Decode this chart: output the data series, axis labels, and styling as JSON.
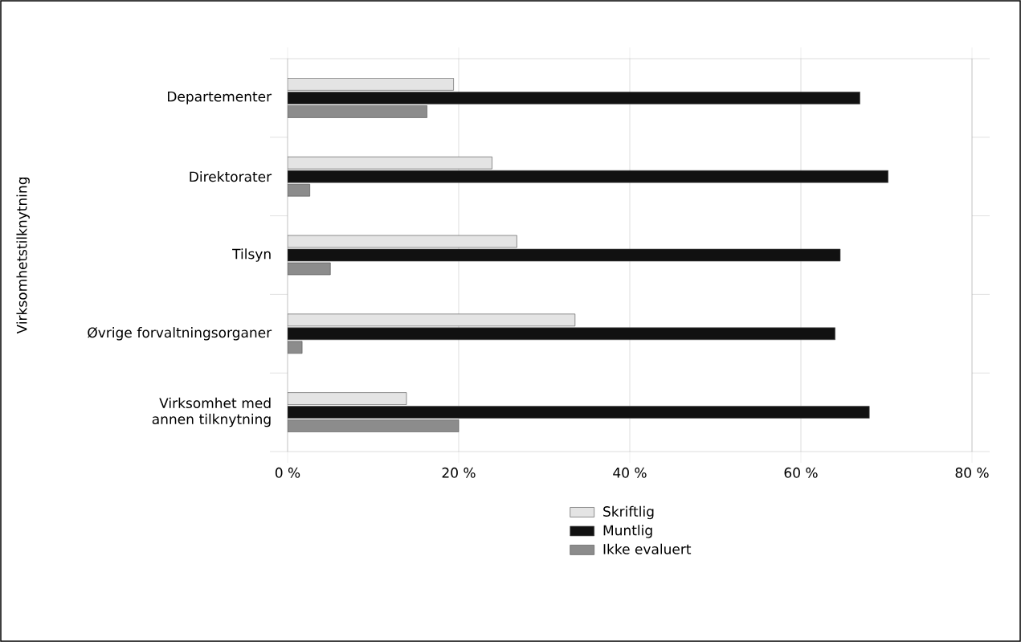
{
  "chart_data": {
    "type": "bar",
    "orientation": "horizontal",
    "ylabel": "Virksomhetstilknytning",
    "categories": [
      "Departementer",
      "Direktorater",
      "Tilsyn",
      "Øvrige forvaltningsorganer",
      "Virksomhet med annen tilknytning"
    ],
    "series": [
      {
        "name": "Skriftlig",
        "color": "#e4e4e4",
        "values": [
          19.4,
          23.9,
          26.8,
          33.6,
          13.9
        ]
      },
      {
        "name": "Muntlig",
        "color": "#111111",
        "values": [
          66.9,
          70.2,
          64.6,
          64.0,
          68.0
        ]
      },
      {
        "name": "Ikke evaluert",
        "color": "#8c8c8c",
        "values": [
          16.3,
          2.6,
          5.0,
          1.7,
          20.0
        ]
      }
    ],
    "xlim": [
      0,
      80
    ],
    "xticks": [
      {
        "value": 0,
        "label": "0 %"
      },
      {
        "value": 20,
        "label": "20 %"
      },
      {
        "value": 40,
        "label": "40 %"
      },
      {
        "value": 60,
        "label": "60 %"
      },
      {
        "value": 80,
        "label": "80 %"
      }
    ],
    "grid": "x",
    "legend": "bottom"
  }
}
